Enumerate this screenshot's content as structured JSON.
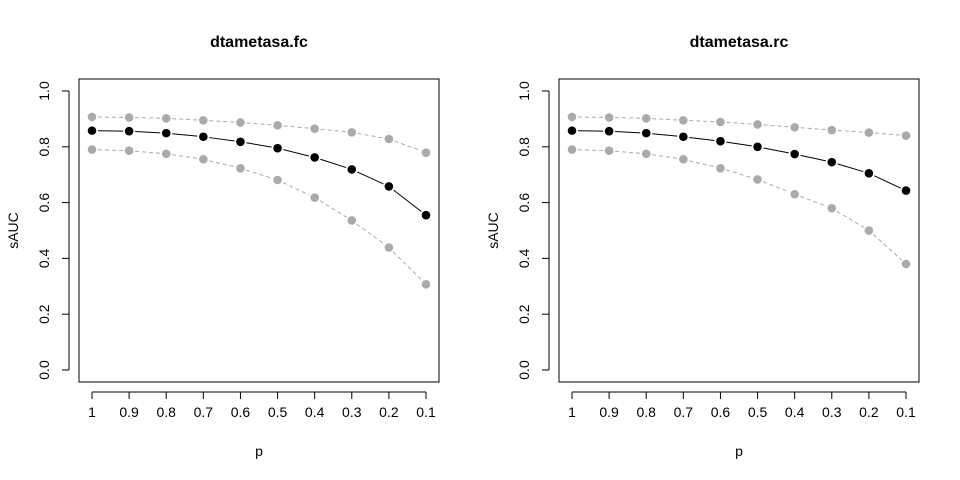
{
  "chart_data": [
    {
      "type": "line",
      "title": "dtametasa.fc",
      "xlabel": "p",
      "ylabel": "sAUC",
      "categories": [
        "1",
        "0.9",
        "0.8",
        "0.7",
        "0.6",
        "0.5",
        "0.4",
        "0.3",
        "0.2",
        "0.1"
      ],
      "ylim": [
        0,
        1
      ],
      "yticks": [
        "0.0",
        "0.2",
        "0.4",
        "0.6",
        "0.8",
        "1.0"
      ],
      "grid": false,
      "series": [
        {
          "color": "#aaaaaa",
          "line_style": "dashed",
          "values": [
            0.907,
            0.905,
            0.902,
            0.895,
            0.887,
            0.877,
            0.865,
            0.852,
            0.828,
            0.779
          ]
        },
        {
          "color": "#000000",
          "line_style": "solid",
          "values": [
            0.858,
            0.856,
            0.849,
            0.836,
            0.818,
            0.795,
            0.762,
            0.719,
            0.658,
            0.555
          ]
        },
        {
          "color": "#aaaaaa",
          "line_style": "dashed",
          "values": [
            0.79,
            0.786,
            0.775,
            0.755,
            0.723,
            0.681,
            0.618,
            0.536,
            0.439,
            0.307
          ]
        }
      ]
    },
    {
      "type": "line",
      "title": "dtametasa.rc",
      "xlabel": "p",
      "ylabel": "sAUC",
      "categories": [
        "1",
        "0.9",
        "0.8",
        "0.7",
        "0.6",
        "0.5",
        "0.4",
        "0.3",
        "0.2",
        "0.1"
      ],
      "ylim": [
        0,
        1
      ],
      "yticks": [
        "0.0",
        "0.2",
        "0.4",
        "0.6",
        "0.8",
        "1.0"
      ],
      "grid": false,
      "series": [
        {
          "color": "#aaaaaa",
          "line_style": "dashed",
          "values": [
            0.907,
            0.905,
            0.902,
            0.895,
            0.889,
            0.88,
            0.87,
            0.86,
            0.851,
            0.84
          ]
        },
        {
          "color": "#000000",
          "line_style": "solid",
          "values": [
            0.858,
            0.856,
            0.849,
            0.836,
            0.82,
            0.8,
            0.774,
            0.745,
            0.705,
            0.643
          ]
        },
        {
          "color": "#aaaaaa",
          "line_style": "dashed",
          "values": [
            0.79,
            0.786,
            0.775,
            0.755,
            0.723,
            0.683,
            0.63,
            0.58,
            0.5,
            0.38
          ]
        }
      ]
    }
  ]
}
